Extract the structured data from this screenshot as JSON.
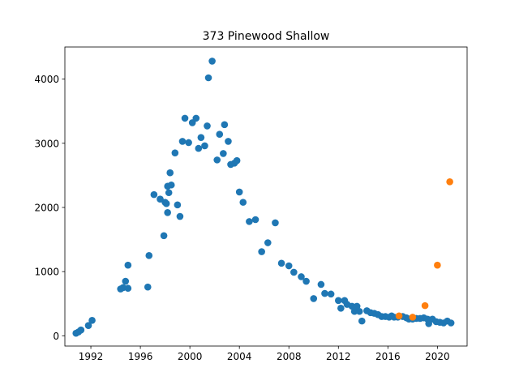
{
  "chart_data": {
    "type": "scatter",
    "title": "373 Pinewood Shallow",
    "xlabel": "",
    "ylabel": "",
    "xlim": [
      1989.9,
      2022.4
    ],
    "ylim": [
      -160,
      4500
    ],
    "x_ticks": [
      1992,
      1996,
      2000,
      2004,
      2008,
      2012,
      2016,
      2020
    ],
    "y_ticks": [
      0,
      1000,
      2000,
      3000,
      4000
    ],
    "grid": false,
    "series": [
      {
        "color": "#1f77b4",
        "points": [
          [
            1990.8,
            40
          ],
          [
            1991.0,
            60
          ],
          [
            1991.2,
            90
          ],
          [
            1991.8,
            160
          ],
          [
            1992.1,
            240
          ],
          [
            1994.4,
            730
          ],
          [
            1994.6,
            750
          ],
          [
            1994.8,
            850
          ],
          [
            1995.0,
            740
          ],
          [
            1995.0,
            1100
          ],
          [
            1996.6,
            760
          ],
          [
            1996.7,
            1250
          ],
          [
            1997.1,
            2200
          ],
          [
            1997.6,
            2130
          ],
          [
            1997.9,
            1560
          ],
          [
            1998.0,
            2080
          ],
          [
            1998.1,
            2060
          ],
          [
            1998.2,
            1920
          ],
          [
            1998.2,
            2330
          ],
          [
            1998.3,
            2230
          ],
          [
            1998.4,
            2540
          ],
          [
            1998.5,
            2350
          ],
          [
            1998.8,
            2850
          ],
          [
            1999.0,
            2040
          ],
          [
            1999.2,
            1860
          ],
          [
            1999.4,
            3030
          ],
          [
            1999.6,
            3390
          ],
          [
            1999.9,
            3010
          ],
          [
            2000.2,
            3320
          ],
          [
            2000.5,
            3390
          ],
          [
            2000.7,
            2920
          ],
          [
            2000.9,
            3090
          ],
          [
            2001.2,
            2960
          ],
          [
            2001.4,
            3270
          ],
          [
            2001.5,
            4020
          ],
          [
            2001.8,
            4280
          ],
          [
            2002.2,
            2740
          ],
          [
            2002.4,
            3140
          ],
          [
            2002.7,
            2840
          ],
          [
            2002.8,
            3290
          ],
          [
            2003.1,
            3030
          ],
          [
            2003.3,
            2670
          ],
          [
            2003.6,
            2690
          ],
          [
            2003.8,
            2730
          ],
          [
            2004.0,
            2240
          ],
          [
            2004.3,
            2080
          ],
          [
            2004.8,
            1780
          ],
          [
            2005.3,
            1810
          ],
          [
            2005.8,
            1310
          ],
          [
            2006.3,
            1450
          ],
          [
            2006.9,
            1760
          ],
          [
            2007.4,
            1130
          ],
          [
            2008.0,
            1090
          ],
          [
            2008.4,
            990
          ],
          [
            2009.0,
            920
          ],
          [
            2009.4,
            850
          ],
          [
            2010.0,
            580
          ],
          [
            2010.6,
            800
          ],
          [
            2010.9,
            660
          ],
          [
            2011.4,
            650
          ],
          [
            2012.0,
            550
          ],
          [
            2012.2,
            430
          ],
          [
            2012.5,
            550
          ],
          [
            2012.7,
            490
          ],
          [
            2013.1,
            460
          ],
          [
            2013.3,
            380
          ],
          [
            2013.5,
            460
          ],
          [
            2013.7,
            380
          ],
          [
            2013.9,
            230
          ],
          [
            2014.3,
            390
          ],
          [
            2014.6,
            360
          ],
          [
            2014.9,
            350
          ],
          [
            2015.2,
            330
          ],
          [
            2015.5,
            300
          ],
          [
            2015.8,
            300
          ],
          [
            2016.1,
            290
          ],
          [
            2016.3,
            310
          ],
          [
            2016.5,
            290
          ],
          [
            2016.8,
            290
          ],
          [
            2017.2,
            300
          ],
          [
            2017.5,
            280
          ],
          [
            2017.7,
            260
          ],
          [
            2018.0,
            260
          ],
          [
            2018.3,
            270
          ],
          [
            2018.6,
            270
          ],
          [
            2018.9,
            280
          ],
          [
            2019.2,
            260
          ],
          [
            2019.3,
            190
          ],
          [
            2019.6,
            260
          ],
          [
            2019.9,
            220
          ],
          [
            2020.2,
            210
          ],
          [
            2020.5,
            200
          ],
          [
            2020.8,
            230
          ],
          [
            2021.1,
            200
          ]
        ]
      },
      {
        "color": "#ff7f0e",
        "points": [
          [
            2016.9,
            310
          ],
          [
            2018.0,
            290
          ],
          [
            2019.0,
            470
          ],
          [
            2020.0,
            1100
          ],
          [
            2021.0,
            2400
          ]
        ]
      }
    ]
  }
}
